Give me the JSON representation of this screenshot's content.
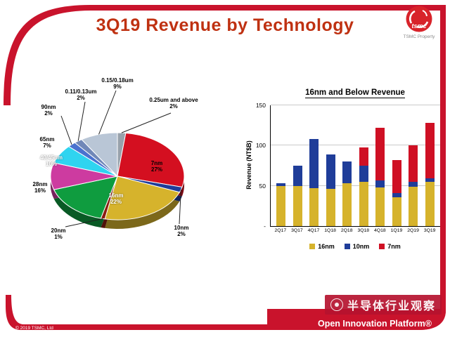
{
  "slide": {
    "title": "3Q19 Revenue by Technology",
    "copyright": "© 2019 TSMC, Ltd",
    "logo_wordmark": "tsmc",
    "logo_caption": "TSMC Property",
    "footer_brand": "Open Innovation Platform®",
    "watermark": "半导体行业观察"
  },
  "colors": {
    "accent": "#bf3111",
    "frame": "#c9132c",
    "logo": "#d8232a"
  },
  "chart_data": [
    {
      "type": "pie",
      "title": "3Q19 Revenue by Technology",
      "start_angle": "top, clockwise",
      "slices": [
        {
          "label": "0.25um and above",
          "pct": 2,
          "pct_label": "2%",
          "color": "#98a2ac"
        },
        {
          "label": "7nm",
          "pct": 27,
          "pct_label": "27%",
          "color": "#d40f20"
        },
        {
          "label": "10nm",
          "pct": 2,
          "pct_label": "2%",
          "color": "#1f3d99"
        },
        {
          "label": "16nm",
          "pct": 22,
          "pct_label": "22%",
          "color": "#d6b32c"
        },
        {
          "label": "20nm",
          "pct": 1,
          "pct_label": "1%",
          "color": "#8a1d12"
        },
        {
          "label": "28nm",
          "pct": 16,
          "pct_label": "16%",
          "color": "#0f9c3f"
        },
        {
          "label": "40/45nm",
          "pct": 10,
          "pct_label": "10%",
          "color": "#cd3ba0"
        },
        {
          "label": "65nm",
          "pct": 7,
          "pct_label": "7%",
          "color": "#2fd4f0"
        },
        {
          "label": "90nm",
          "pct": 2,
          "pct_label": "2%",
          "color": "#4a72cf"
        },
        {
          "label": "0.11/0.13um",
          "pct": 2,
          "pct_label": "2%",
          "color": "#7188b8"
        },
        {
          "label": "0.15/0.18um",
          "pct": 9,
          "pct_label": "9%",
          "color": "#b9c6d6"
        }
      ]
    },
    {
      "type": "stacked_bar",
      "title": "16nm and Below Revenue",
      "ylabel": "Revenue (NT$B)",
      "ylim": [
        0,
        150
      ],
      "yticks": [
        {
          "label": "150",
          "value": 150
        },
        {
          "label": "100",
          "value": 100
        },
        {
          "label": "50",
          "value": 50
        },
        {
          "label": "-",
          "value": 0
        }
      ],
      "categories": [
        "2Q17",
        "3Q17",
        "4Q17",
        "1Q18",
        "2Q18",
        "3Q18",
        "4Q18",
        "1Q19",
        "2Q19",
        "3Q19"
      ],
      "series": [
        {
          "name": "16nm",
          "color": "#d6b32c",
          "values": [
            50,
            50,
            47,
            46,
            53,
            55,
            48,
            36,
            49,
            55
          ]
        },
        {
          "name": "10nm",
          "color": "#1f3d99",
          "values": [
            3,
            25,
            61,
            43,
            27,
            20,
            9,
            5,
            6,
            4
          ]
        },
        {
          "name": "7nm",
          "color": "#cf1024",
          "values": [
            0,
            0,
            0,
            0,
            0,
            23,
            65,
            41,
            45,
            69
          ]
        }
      ],
      "legend_position": "bottom",
      "grid": true
    }
  ]
}
